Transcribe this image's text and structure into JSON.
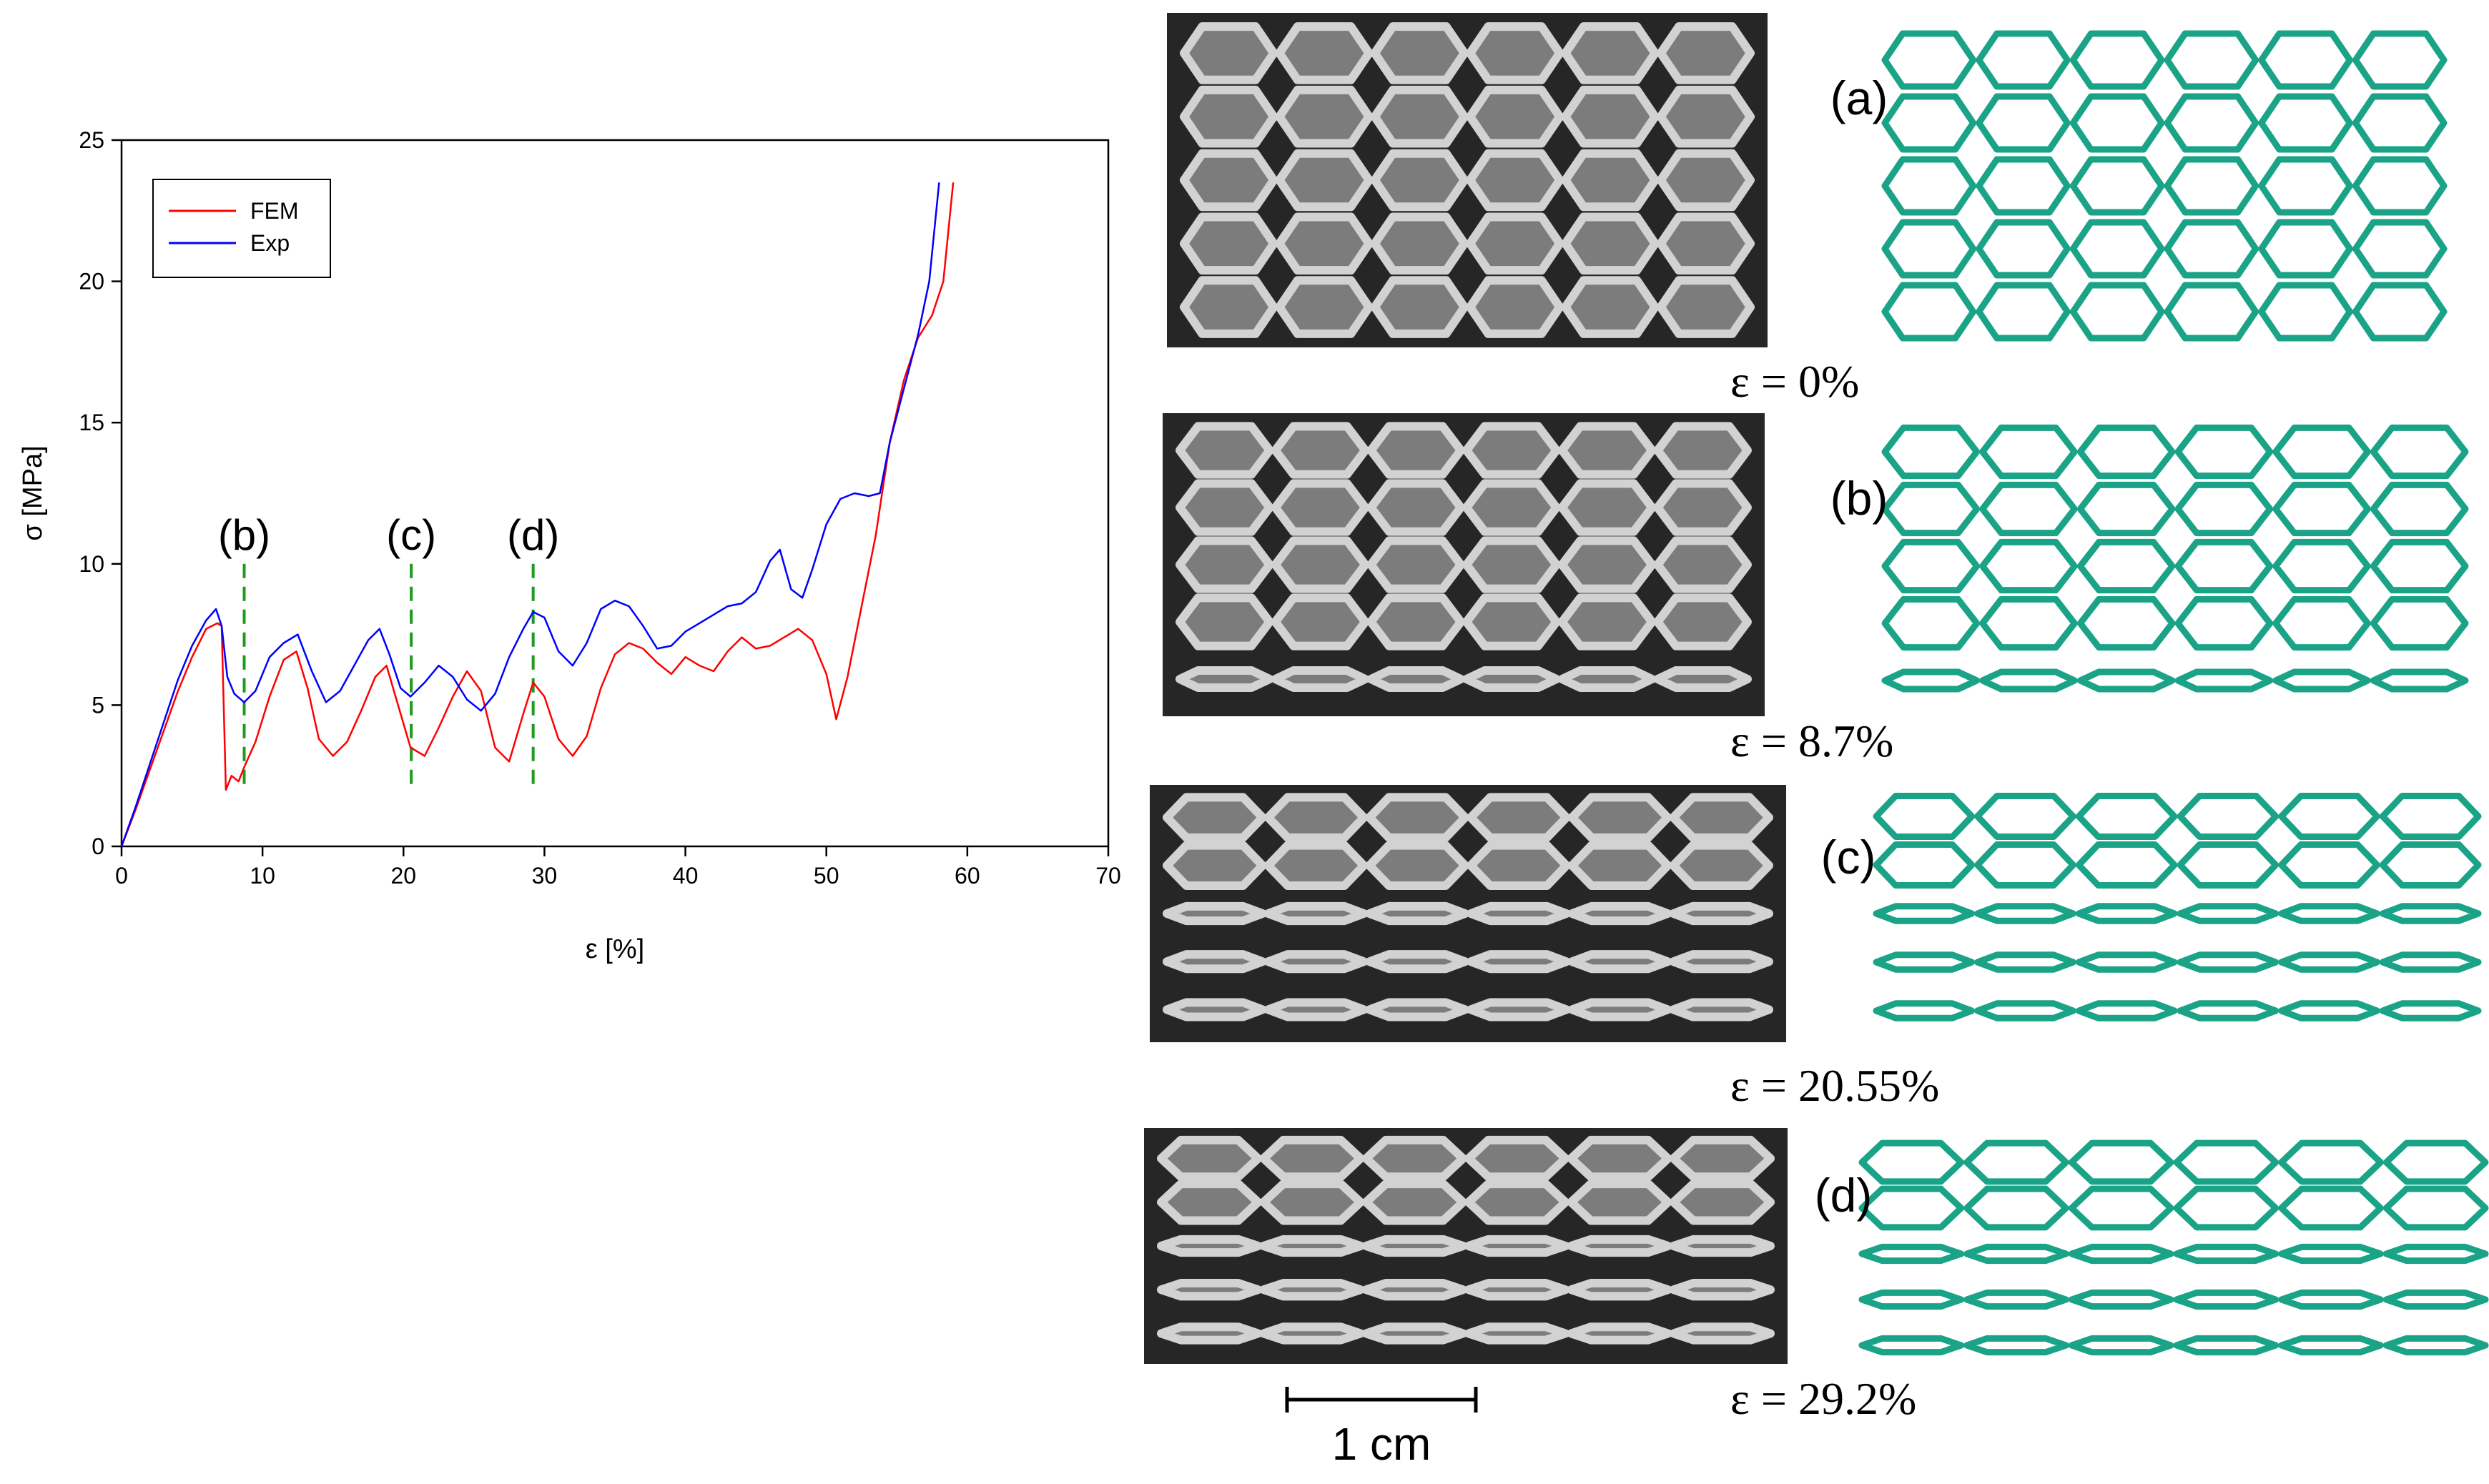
{
  "chart_data": {
    "type": "line",
    "xlabel": "ε [%]",
    "ylabel": "σ [MPa]",
    "xlim": [
      0,
      70
    ],
    "ylim": [
      0,
      25
    ],
    "xticks": [
      0,
      10,
      20,
      30,
      40,
      50,
      60,
      70
    ],
    "yticks": [
      0,
      5,
      10,
      15,
      20,
      25
    ],
    "grid": false,
    "legend": "top-left",
    "series": [
      {
        "name": "FEM",
        "color": "#ff0000",
        "x": [
          0,
          1,
          2,
          3,
          4,
          5,
          6,
          6.8,
          7.1,
          7.4,
          7.8,
          8.3,
          8.7,
          9.5,
          10.5,
          11.5,
          12.4,
          13.2,
          14.0,
          15.0,
          16.0,
          17.0,
          18.0,
          18.8,
          19.5,
          20.5,
          21.5,
          22.5,
          23.5,
          24.5,
          25.5,
          26.5,
          27.5,
          28.5,
          29.2,
          30.0,
          31.0,
          32.0,
          33.0,
          34.0,
          35.0,
          36.0,
          37.0,
          38.0,
          39.0,
          40.0,
          41.0,
          42.0,
          43.0,
          44.0,
          45.0,
          46.0,
          47.0,
          48.0,
          49.0,
          50.0,
          50.7,
          51.5,
          52.5,
          53.5,
          54.5,
          55.5,
          56.5,
          57.5,
          58.3,
          59.0
        ],
        "y": [
          0,
          1.3,
          2.7,
          4.1,
          5.5,
          6.7,
          7.7,
          7.9,
          7.8,
          2.0,
          2.5,
          2.3,
          2.8,
          3.7,
          5.3,
          6.6,
          6.9,
          5.6,
          3.8,
          3.2,
          3.7,
          4.8,
          6.0,
          6.4,
          5.2,
          3.5,
          3.2,
          4.2,
          5.3,
          6.2,
          5.5,
          3.5,
          3.0,
          4.7,
          5.8,
          5.3,
          3.8,
          3.2,
          3.9,
          5.6,
          6.8,
          7.2,
          7.0,
          6.5,
          6.1,
          6.7,
          6.4,
          6.2,
          6.9,
          7.4,
          7.0,
          7.1,
          7.4,
          7.7,
          7.3,
          6.1,
          4.5,
          6.0,
          8.5,
          11.0,
          14.3,
          16.5,
          18.0,
          18.8,
          20.0,
          23.5
        ]
      },
      {
        "name": "Exp",
        "color": "#0000ff",
        "x": [
          0,
          1,
          2,
          3,
          4,
          5,
          6,
          6.7,
          7.1,
          7.5,
          8.0,
          8.7,
          9.5,
          10.5,
          11.5,
          12.5,
          13.5,
          14.5,
          15.5,
          16.5,
          17.5,
          18.3,
          19.0,
          19.8,
          20.5,
          21.5,
          22.5,
          23.5,
          24.5,
          25.5,
          26.5,
          27.5,
          28.5,
          29.2,
          30.0,
          31.0,
          32.0,
          33.0,
          34.0,
          35.0,
          36.0,
          37.0,
          38.0,
          39.0,
          40.0,
          41.0,
          42.0,
          43.0,
          44.0,
          45.0,
          46.0,
          46.7,
          47.5,
          48.3,
          49.0,
          50.0,
          51.0,
          52.0,
          53.0,
          53.8,
          54.5,
          55.5,
          56.5,
          57.3,
          58.0
        ],
        "y": [
          0,
          1.4,
          2.9,
          4.4,
          5.9,
          7.1,
          8.0,
          8.4,
          7.8,
          6.0,
          5.4,
          5.1,
          5.5,
          6.7,
          7.2,
          7.5,
          6.2,
          5.1,
          5.5,
          6.4,
          7.3,
          7.7,
          6.8,
          5.6,
          5.3,
          5.8,
          6.4,
          6.0,
          5.2,
          4.8,
          5.4,
          6.7,
          7.7,
          8.3,
          8.1,
          6.9,
          6.4,
          7.2,
          8.4,
          8.7,
          8.5,
          7.8,
          7.0,
          7.1,
          7.6,
          7.9,
          8.2,
          8.5,
          8.6,
          9.0,
          10.1,
          10.5,
          9.1,
          8.8,
          9.8,
          11.4,
          12.3,
          12.5,
          12.4,
          12.5,
          14.3,
          16.2,
          18.1,
          20.0,
          23.5
        ]
      }
    ],
    "annotations": [
      {
        "label": "(b)",
        "x": 8.7
      },
      {
        "label": "(c)",
        "x": 20.55
      },
      {
        "label": "(d)",
        "x": 29.2
      }
    ]
  },
  "panels": [
    {
      "label": "(a)",
      "strain": "ε = 0%"
    },
    {
      "label": "(b)",
      "strain": "ε = 8.7%"
    },
    {
      "label": "(c)",
      "strain": "ε = 20.55%"
    },
    {
      "label": "(d)",
      "strain": "ε = 29.2%"
    }
  ],
  "scale_bar": {
    "label": "1 cm"
  },
  "colors": {
    "lattice_model": "#1aa386",
    "photo_bg": "#262626",
    "photo_struts": "#d2d2d2",
    "marker_line": "#1f9a1f"
  }
}
